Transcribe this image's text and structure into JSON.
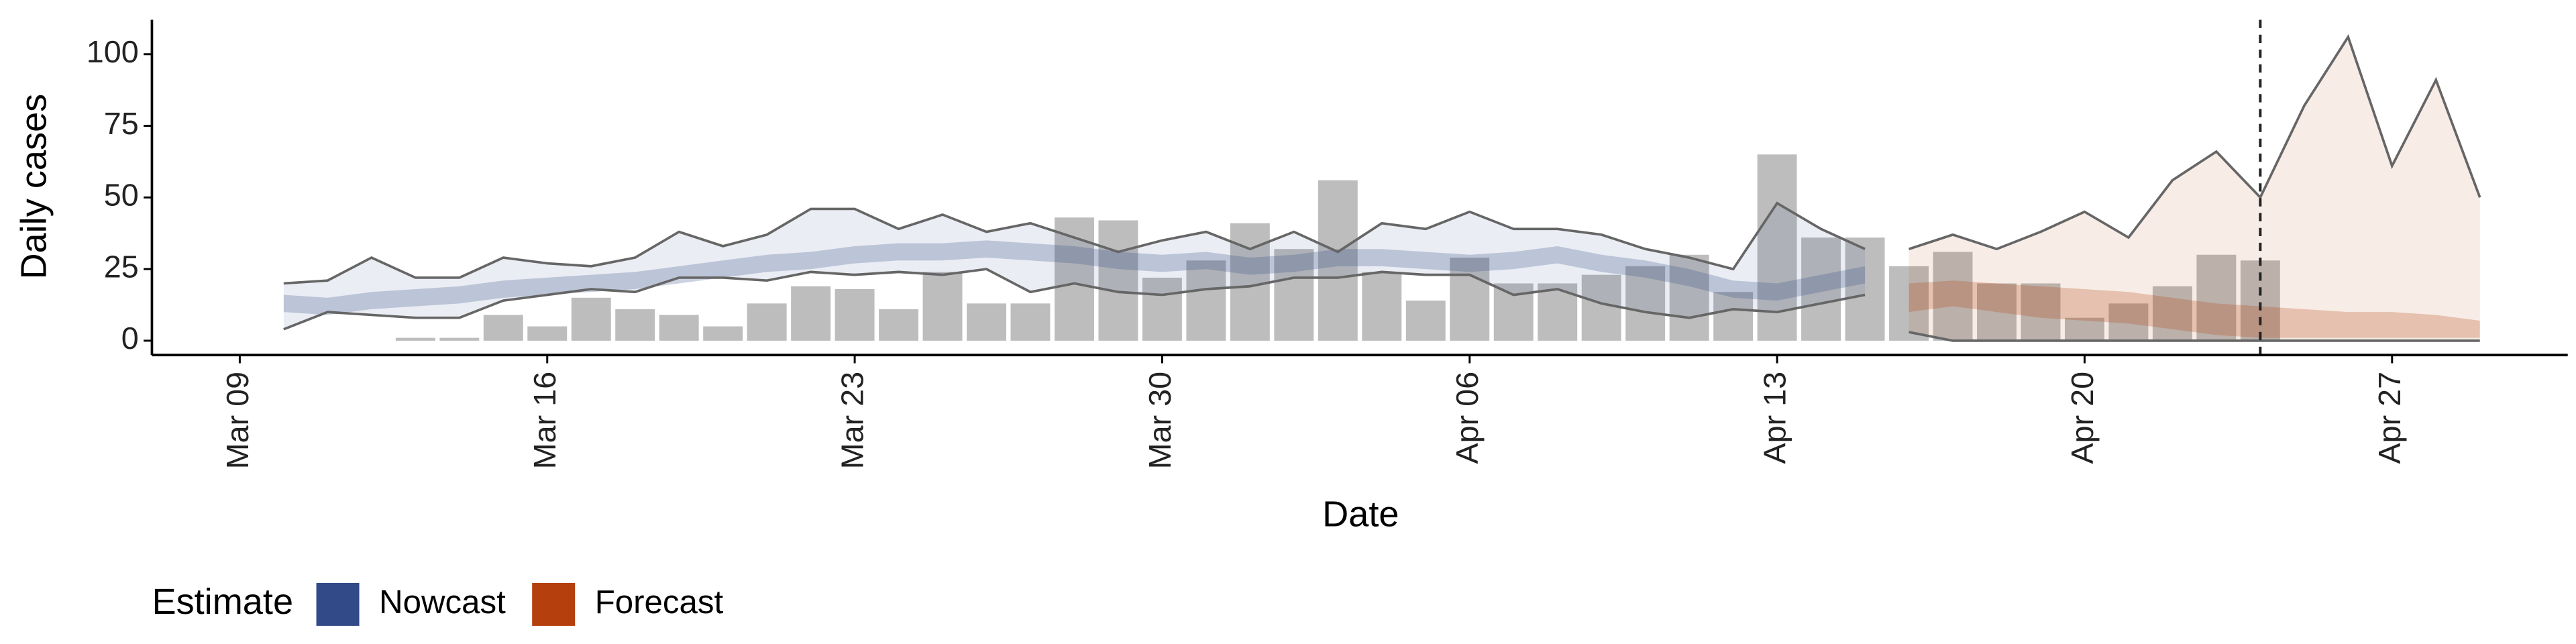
{
  "chart_data": {
    "type": "bar",
    "x_label": "Date",
    "y_label": "Daily cases",
    "legend_title": "Estimate",
    "legend_position": "bottom-left",
    "bar_color": "#bdbdbd",
    "categories": [
      "Mar 13",
      "Mar 14",
      "Mar 15",
      "Mar 16",
      "Mar 17",
      "Mar 18",
      "Mar 19",
      "Mar 20",
      "Mar 21",
      "Mar 22",
      "Mar 23",
      "Mar 24",
      "Mar 25",
      "Mar 26",
      "Mar 27",
      "Mar 28",
      "Mar 29",
      "Mar 30",
      "Mar 31",
      "Apr 01",
      "Apr 02",
      "Apr 03",
      "Apr 04",
      "Apr 05",
      "Apr 06",
      "Apr 07",
      "Apr 08",
      "Apr 09",
      "Apr 10",
      "Apr 11",
      "Apr 12",
      "Apr 13",
      "Apr 14",
      "Apr 15",
      "Apr 16",
      "Apr 17",
      "Apr 18",
      "Apr 19",
      "Apr 20",
      "Apr 21",
      "Apr 22",
      "Apr 23",
      "Apr 24"
    ],
    "values": [
      1,
      1,
      9,
      5,
      15,
      11,
      9,
      5,
      13,
      19,
      18,
      11,
      24,
      13,
      13,
      43,
      42,
      22,
      28,
      41,
      32,
      56,
      24,
      14,
      29,
      20,
      20,
      23,
      26,
      30,
      17,
      65,
      36,
      36,
      26,
      31,
      20,
      20,
      8,
      13,
      19,
      30,
      28
    ],
    "series": [
      {
        "name": "Nowcast",
        "color": "#334a88",
        "x": [
          "Mar 10",
          "Mar 11",
          "Mar 12",
          "Mar 13",
          "Mar 14",
          "Mar 15",
          "Mar 16",
          "Mar 17",
          "Mar 18",
          "Mar 19",
          "Mar 20",
          "Mar 21",
          "Mar 22",
          "Mar 23",
          "Mar 24",
          "Mar 25",
          "Mar 26",
          "Mar 27",
          "Mar 28",
          "Mar 29",
          "Mar 30",
          "Mar 31",
          "Apr 01",
          "Apr 02",
          "Apr 03",
          "Apr 04",
          "Apr 05",
          "Apr 06",
          "Apr 07",
          "Apr 08",
          "Apr 09",
          "Apr 10",
          "Apr 11",
          "Apr 12",
          "Apr 13",
          "Apr 14",
          "Apr 15"
        ],
        "upper": [
          20,
          21,
          29,
          22,
          22,
          29,
          27,
          26,
          29,
          38,
          33,
          37,
          46,
          46,
          39,
          44,
          38,
          41,
          36,
          31,
          35,
          38,
          32,
          38,
          31,
          41,
          39,
          45,
          39,
          39,
          37,
          32,
          29,
          25,
          48,
          39,
          32
        ],
        "lower": [
          4,
          10,
          9,
          8,
          8,
          14,
          16,
          18,
          17,
          22,
          22,
          21,
          24,
          23,
          24,
          23,
          25,
          17,
          20,
          17,
          16,
          18,
          19,
          22,
          22,
          24,
          23,
          23,
          16,
          18,
          13,
          10,
          8,
          11,
          10,
          13,
          16
        ],
        "inner_upper": [
          16,
          15,
          17,
          18,
          19,
          21,
          22,
          23,
          24,
          26,
          28,
          30,
          31,
          33,
          34,
          34,
          35,
          34,
          33,
          31,
          30,
          31,
          29,
          30,
          32,
          32,
          31,
          30,
          31,
          33,
          30,
          28,
          25,
          21,
          20,
          23,
          26
        ],
        "inner_lower": [
          10,
          9,
          11,
          12,
          13,
          15,
          16,
          17,
          18,
          20,
          22,
          24,
          25,
          27,
          28,
          28,
          29,
          28,
          27,
          25,
          24,
          25,
          23,
          24,
          26,
          26,
          25,
          24,
          25,
          27,
          24,
          22,
          19,
          15,
          14,
          17,
          20
        ]
      },
      {
        "name": "Forecast",
        "color": "#b5400d",
        "x": [
          "Apr 16",
          "Apr 17",
          "Apr 18",
          "Apr 19",
          "Apr 20",
          "Apr 21",
          "Apr 22",
          "Apr 23",
          "Apr 24",
          "Apr 25",
          "Apr 26",
          "Apr 27",
          "Apr 28",
          "Apr 29"
        ],
        "upper": [
          32,
          37,
          32,
          38,
          45,
          36,
          56,
          66,
          50,
          82,
          106,
          61,
          91,
          50
        ],
        "lower": [
          3,
          0,
          0,
          0,
          0,
          0,
          0,
          0,
          0,
          0,
          0,
          0,
          0,
          0
        ],
        "inner_upper": [
          20,
          21,
          20,
          19,
          18,
          17,
          15,
          13,
          12,
          11,
          10,
          10,
          9,
          7
        ],
        "inner_lower": [
          10,
          12,
          10,
          8,
          7,
          6,
          4,
          2,
          1,
          1,
          1,
          1,
          1,
          1
        ]
      }
    ],
    "vline": "Apr 24",
    "xlim": [
      "Mar 07",
      "May 01"
    ],
    "xticks": [
      "Mar 09",
      "Mar 16",
      "Mar 23",
      "Mar 30",
      "Apr 06",
      "Apr 13",
      "Apr 20",
      "Apr 27"
    ],
    "ylim": [
      -5,
      112
    ],
    "yticks": [
      0,
      25,
      50,
      75,
      100
    ]
  }
}
